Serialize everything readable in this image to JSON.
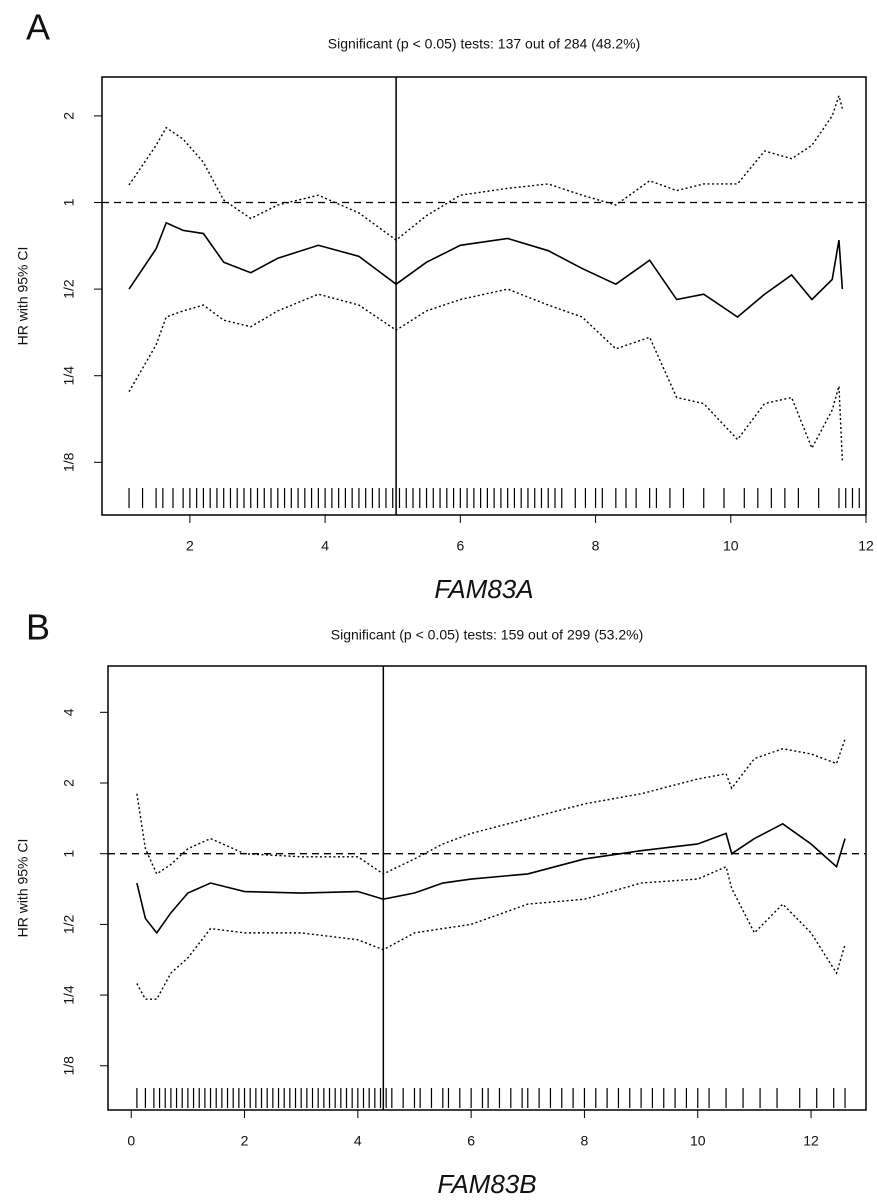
{
  "chart_data": [
    {
      "type": "line",
      "label": "A",
      "title": "Significant (p < 0.05) tests: 137 out of 284 (48.2%)",
      "xlabel": "FAM83A",
      "ylabel": "HR with 95% CI",
      "ylog": true,
      "xlim": [
        0.7,
        12
      ],
      "ylim": [
        0.082,
        2.73
      ],
      "xticks": [
        2,
        4,
        6,
        8,
        10,
        12
      ],
      "yticks": [
        {
          "value": 0.125,
          "label": "1/8"
        },
        {
          "value": 0.25,
          "label": "1/4"
        },
        {
          "value": 0.5,
          "label": "1/2"
        },
        1,
        2
      ],
      "hline": 1,
      "vline": 5.05,
      "x": [
        1.1,
        1.5,
        1.65,
        1.9,
        2.2,
        2.5,
        2.9,
        3.3,
        3.9,
        4.5,
        5.05,
        5.5,
        6.0,
        6.7,
        7.3,
        7.8,
        8.3,
        8.8,
        9.2,
        9.6,
        10.1,
        10.5,
        10.9,
        11.2,
        11.5,
        11.6,
        11.65
      ],
      "series": [
        {
          "color": "#000000",
          "style": "solid",
          "values": [
            0.5,
            0.69,
            0.85,
            0.8,
            0.78,
            0.62,
            0.57,
            0.64,
            0.71,
            0.65,
            0.52,
            0.62,
            0.71,
            0.75,
            0.68,
            0.59,
            0.52,
            0.63,
            0.46,
            0.48,
            0.4,
            0.48,
            0.56,
            0.46,
            0.54,
            0.74,
            0.5
          ]
        },
        {
          "color": "#000000",
          "style": "dotted",
          "values": [
            1.15,
            1.58,
            1.82,
            1.66,
            1.38,
            1.02,
            0.88,
            0.98,
            1.06,
            0.92,
            0.74,
            0.9,
            1.06,
            1.12,
            1.16,
            1.06,
            0.98,
            1.19,
            1.1,
            1.16,
            1.16,
            1.51,
            1.42,
            1.58,
            2.0,
            2.35,
            2.12
          ]
        },
        {
          "color": "#000000",
          "style": "dotted",
          "values": [
            0.22,
            0.32,
            0.4,
            0.42,
            0.44,
            0.39,
            0.37,
            0.42,
            0.48,
            0.44,
            0.36,
            0.42,
            0.46,
            0.5,
            0.44,
            0.4,
            0.31,
            0.34,
            0.21,
            0.2,
            0.15,
            0.2,
            0.21,
            0.14,
            0.19,
            0.23,
            0.127
          ]
        }
      ],
      "rug": [
        1.1,
        1.3,
        1.5,
        1.6,
        1.75,
        1.9,
        2.0,
        2.1,
        2.2,
        2.3,
        2.4,
        2.5,
        2.6,
        2.7,
        2.8,
        2.9,
        3.0,
        3.1,
        3.2,
        3.3,
        3.4,
        3.5,
        3.6,
        3.7,
        3.8,
        3.9,
        4.0,
        4.1,
        4.2,
        4.3,
        4.4,
        4.5,
        4.6,
        4.7,
        4.8,
        4.9,
        5.0,
        5.1,
        5.2,
        5.3,
        5.4,
        5.5,
        5.6,
        5.7,
        5.8,
        5.9,
        6.0,
        6.1,
        6.2,
        6.3,
        6.4,
        6.5,
        6.6,
        6.7,
        6.8,
        6.9,
        7.0,
        7.1,
        7.2,
        7.3,
        7.4,
        7.5,
        7.7,
        7.85,
        8.0,
        8.1,
        8.3,
        8.45,
        8.6,
        8.8,
        8.9,
        9.1,
        9.3,
        9.6,
        9.9,
        10.2,
        10.4,
        10.6,
        10.8,
        11.0,
        11.3,
        11.6,
        11.7,
        11.8,
        11.9
      ]
    },
    {
      "type": "line",
      "label": "B",
      "title": "Significant (p < 0.05) tests: 159 out of 299 (53.2%)",
      "xlabel": "FAM83B",
      "ylabel": "HR with 95% CI",
      "ylog": true,
      "xlim": [
        -0.41,
        12.97
      ],
      "ylim": [
        0.081,
        6.3
      ],
      "xticks": [
        0,
        2,
        4,
        6,
        8,
        10,
        12
      ],
      "yticks": [
        {
          "value": 0.125,
          "label": "1/8"
        },
        {
          "value": 0.25,
          "label": "1/4"
        },
        {
          "value": 0.5,
          "label": "1/2"
        },
        1,
        2,
        4
      ],
      "hline": 1,
      "vline": 4.45,
      "x": [
        0.1,
        0.25,
        0.45,
        0.7,
        1.0,
        1.4,
        2.0,
        3.0,
        4.0,
        4.45,
        5.0,
        5.5,
        6.0,
        7.0,
        8.0,
        9.0,
        10.0,
        10.5,
        10.6,
        11.0,
        11.5,
        12.0,
        12.45,
        12.6
      ],
      "series": [
        {
          "color": "#000000",
          "style": "solid",
          "values": [
            0.75,
            0.53,
            0.46,
            0.56,
            0.68,
            0.75,
            0.69,
            0.68,
            0.69,
            0.64,
            0.68,
            0.75,
            0.78,
            0.82,
            0.95,
            1.03,
            1.1,
            1.22,
            1.0,
            1.16,
            1.34,
            1.1,
            0.88,
            1.16
          ]
        },
        {
          "color": "#000000",
          "style": "dotted",
          "values": [
            1.8,
            1.05,
            0.82,
            0.9,
            1.05,
            1.16,
            1.0,
            0.97,
            0.97,
            0.82,
            0.95,
            1.1,
            1.22,
            1.41,
            1.63,
            1.8,
            2.08,
            2.19,
            1.9,
            2.54,
            2.8,
            2.66,
            2.42,
            3.08
          ]
        },
        {
          "color": "#000000",
          "style": "dotted",
          "values": [
            0.28,
            0.24,
            0.24,
            0.31,
            0.36,
            0.48,
            0.46,
            0.46,
            0.43,
            0.39,
            0.46,
            0.48,
            0.5,
            0.61,
            0.64,
            0.75,
            0.78,
            0.88,
            0.71,
            0.46,
            0.61,
            0.46,
            0.31,
            0.41
          ]
        }
      ],
      "rug": [
        0.1,
        0.25,
        0.4,
        0.5,
        0.6,
        0.7,
        0.8,
        0.9,
        1.0,
        1.1,
        1.2,
        1.3,
        1.4,
        1.5,
        1.6,
        1.7,
        1.8,
        1.9,
        2.0,
        2.1,
        2.2,
        2.3,
        2.4,
        2.5,
        2.6,
        2.7,
        2.8,
        2.9,
        3.0,
        3.1,
        3.2,
        3.3,
        3.4,
        3.5,
        3.6,
        3.7,
        3.8,
        3.9,
        4.0,
        4.1,
        4.2,
        4.3,
        4.4,
        4.5,
        4.6,
        4.8,
        5.0,
        5.1,
        5.3,
        5.5,
        5.6,
        5.8,
        6.0,
        6.2,
        6.3,
        6.5,
        6.7,
        6.9,
        7.0,
        7.2,
        7.4,
        7.6,
        7.8,
        8.0,
        8.2,
        8.4,
        8.6,
        8.8,
        9.0,
        9.2,
        9.4,
        9.6,
        9.8,
        10.0,
        10.2,
        10.5,
        10.8,
        11.1,
        11.4,
        11.8,
        12.1,
        12.4,
        12.6
      ]
    }
  ]
}
